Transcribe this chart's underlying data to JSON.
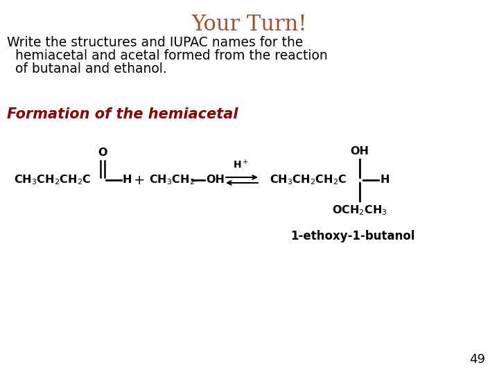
{
  "title": "Your Turn!",
  "title_color": "#A0522D",
  "title_fontsize": 22,
  "body_text_line1": "Write the structures and IUPAC names for the",
  "body_text_line2": "  hemiacetal and acetal formed from the reaction",
  "body_text_line3": "  of butanal and ethanol.",
  "body_fontsize": 13.5,
  "body_color": "#000000",
  "section_text": "Formation of the hemiacetal",
  "section_color": "#8B0000",
  "section_fontsize": 15,
  "page_number": "49",
  "background_color": "#ffffff",
  "iupac_name": "1-ethoxy-1-butanol",
  "chem_fontsize": 11.5
}
